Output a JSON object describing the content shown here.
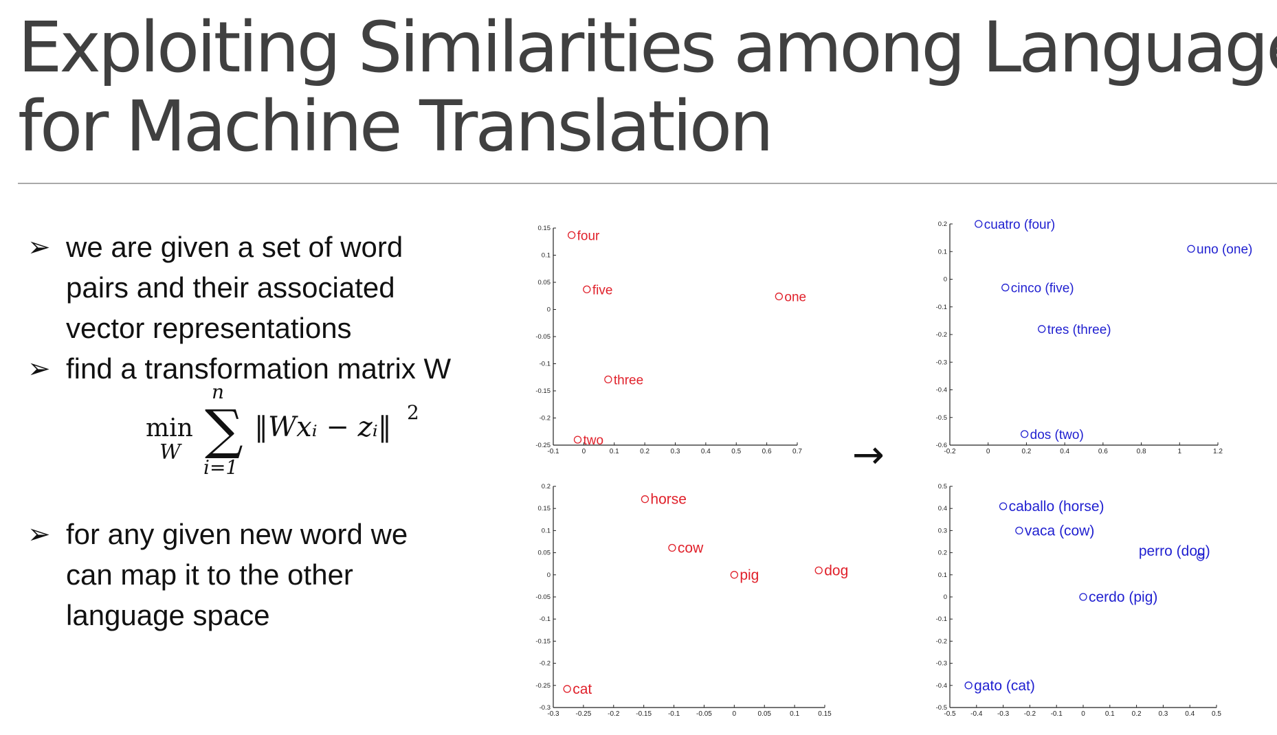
{
  "title": {
    "line1": "Exploiting Similarities among Languages",
    "line2": "for Machine Translation"
  },
  "bullets": [
    {
      "lines": [
        "we are given a set of word",
        "pairs and their associated",
        "vector representations"
      ]
    },
    {
      "lines": [
        "find a transformation matrix W"
      ]
    },
    {
      "lines": [
        "for any given new word we",
        "can map it to the other",
        "language space"
      ]
    }
  ],
  "equation": {
    "op": "min",
    "sub": "W",
    "sum_top": "n",
    "sum_bottom": "i=1",
    "body": "‖Wxᵢ − zᵢ‖",
    "exp": "2"
  },
  "arrow_symbol": "→",
  "colors": {
    "english": "#e0202a",
    "spanish": "#1f1fd0",
    "axis": "#222222"
  },
  "chart_data": [
    {
      "type": "scatter",
      "xlim": [
        -0.1,
        0.7
      ],
      "ylim": [
        -0.25,
        0.15
      ],
      "xticks": [
        "-0.1",
        "0",
        "0.1",
        "0.2",
        "0.3",
        "0.4",
        "0.5",
        "0.6",
        "0.7"
      ],
      "yticks": [
        "-0.25",
        "-0.2",
        "-0.15",
        "-0.1",
        "-0.05",
        "0",
        "0.05",
        "0.1",
        "0.15"
      ],
      "color": "#e0202a",
      "points": [
        {
          "x": -0.04,
          "y": 0.137,
          "label": "four"
        },
        {
          "x": 0.01,
          "y": 0.037,
          "label": "five"
        },
        {
          "x": 0.64,
          "y": 0.024,
          "label": "one"
        },
        {
          "x": 0.08,
          "y": -0.129,
          "label": "three"
        },
        {
          "x": -0.02,
          "y": -0.24,
          "label": "two"
        }
      ]
    },
    {
      "type": "scatter",
      "xlim": [
        -0.2,
        1.2
      ],
      "ylim": [
        -0.6,
        0.2
      ],
      "xticks": [
        "-0.2",
        "0",
        "0.2",
        "0.4",
        "0.6",
        "0.8",
        "1",
        "1.2"
      ],
      "yticks": [
        "-0.6",
        "-0.5",
        "-0.4",
        "-0.3",
        "-0.2",
        "-0.1",
        "0",
        "0.1",
        "0.2"
      ],
      "color": "#1f1fd0",
      "points": [
        {
          "x": -0.05,
          "y": 0.2,
          "label": "cuatro (four)"
        },
        {
          "x": 1.06,
          "y": 0.11,
          "label": "uno (one)"
        },
        {
          "x": 0.09,
          "y": -0.03,
          "label": "cinco (five)"
        },
        {
          "x": 0.28,
          "y": -0.18,
          "label": "tres (three)"
        },
        {
          "x": 0.19,
          "y": -0.56,
          "label": "dos (two)"
        }
      ]
    },
    {
      "type": "scatter",
      "xlim": [
        -0.3,
        0.15
      ],
      "ylim": [
        -0.3,
        0.2
      ],
      "xticks": [
        "-0.3",
        "-0.25",
        "-0.2",
        "-0.15",
        "-0.1",
        "-0.05",
        "0",
        "0.05",
        "0.1",
        "0.15"
      ],
      "yticks": [
        "-0.3",
        "-0.25",
        "-0.2",
        "-0.15",
        "-0.1",
        "-0.05",
        "0",
        "0.05",
        "0.1",
        "0.15",
        "0.2"
      ],
      "color": "#e0202a",
      "points": [
        {
          "x": -0.148,
          "y": 0.171,
          "label": "horse"
        },
        {
          "x": -0.103,
          "y": 0.061,
          "label": "cow"
        },
        {
          "x": 0.0,
          "y": 0.0,
          "label": "pig"
        },
        {
          "x": 0.14,
          "y": 0.01,
          "label": "dog"
        },
        {
          "x": -0.277,
          "y": -0.258,
          "label": "cat"
        }
      ]
    },
    {
      "type": "scatter",
      "xlim": [
        -0.5,
        0.5
      ],
      "ylim": [
        -0.5,
        0.5
      ],
      "xticks": [
        "-0.5",
        "-0.4",
        "-0.3",
        "-0.2",
        "-0.1",
        "0",
        "0.1",
        "0.2",
        "0.3",
        "0.4",
        "0.5"
      ],
      "yticks": [
        "-0.5",
        "-0.4",
        "-0.3",
        "-0.2",
        "-0.1",
        "0",
        "0.1",
        "0.2",
        "0.3",
        "0.4",
        "0.5"
      ],
      "color": "#1f1fd0",
      "points": [
        {
          "x": -0.3,
          "y": 0.41,
          "label": "caballo (horse)"
        },
        {
          "x": -0.24,
          "y": 0.3,
          "label": "vaca (cow)"
        },
        {
          "x": 0.44,
          "y": 0.18,
          "label": "perro (dog)"
        },
        {
          "x": 0.0,
          "y": 0.0,
          "label": "cerdo (pig)"
        },
        {
          "x": -0.43,
          "y": -0.4,
          "label": "gato (cat)"
        }
      ]
    }
  ]
}
